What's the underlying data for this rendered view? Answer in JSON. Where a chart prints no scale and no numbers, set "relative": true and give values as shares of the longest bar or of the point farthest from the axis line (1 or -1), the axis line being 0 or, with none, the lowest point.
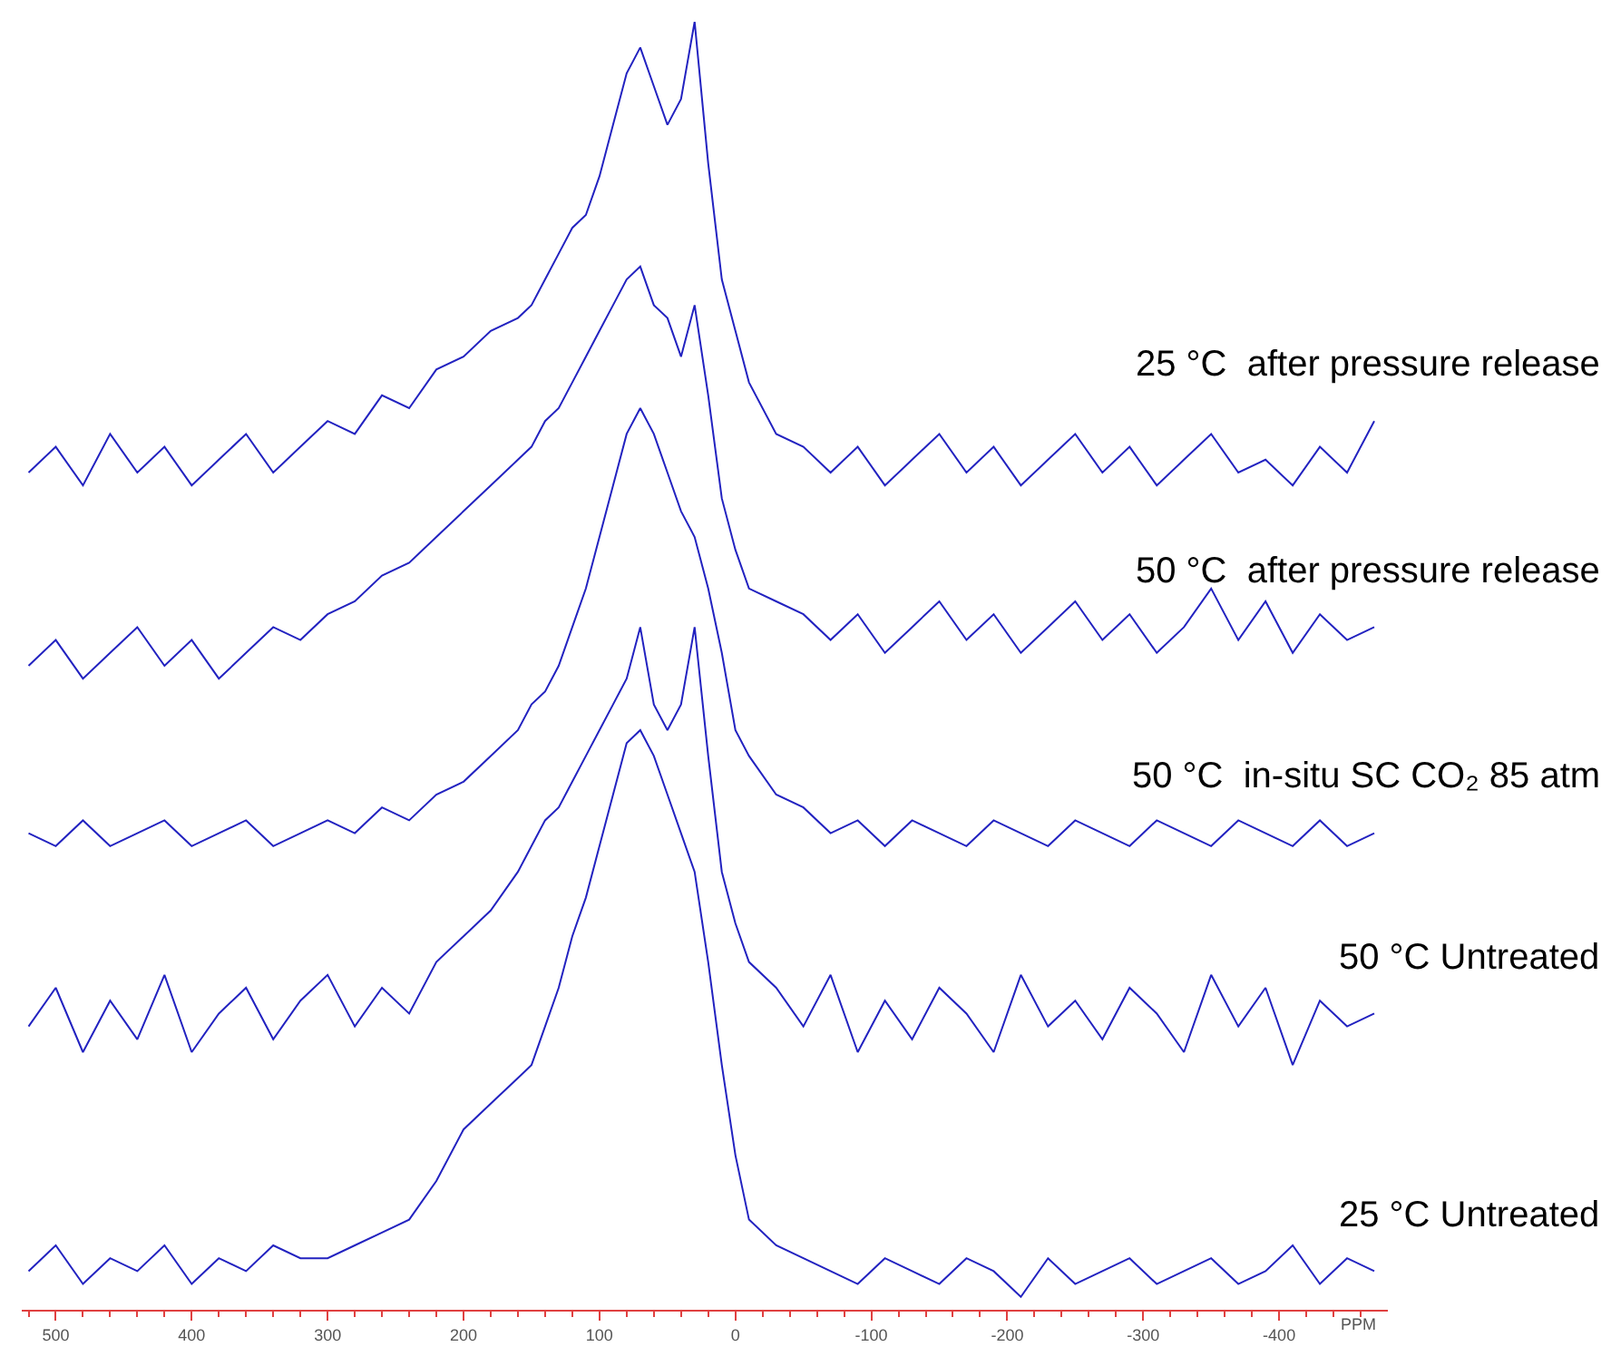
{
  "chart_data": {
    "type": "line",
    "relative": true,
    "xlabel": "PPM",
    "legend": false,
    "tick_labels": "x",
    "marker": "none",
    "line_style": "solid",
    "xlim": [
      525,
      -480
    ],
    "xticks": [
      500,
      400,
      300,
      200,
      100,
      0,
      -100,
      -200,
      -300,
      -400,
      {
        "value": 520,
        "label": null
      },
      {
        "value": 480,
        "label": null
      },
      {
        "value": 460,
        "label": null
      },
      {
        "value": 440,
        "label": null
      },
      {
        "value": 420,
        "label": null
      },
      {
        "value": 380,
        "label": null
      },
      {
        "value": 360,
        "label": null
      },
      {
        "value": 340,
        "label": null
      },
      {
        "value": 320,
        "label": null
      },
      {
        "value": 280,
        "label": null
      },
      {
        "value": 260,
        "label": null
      },
      {
        "value": 240,
        "label": null
      },
      {
        "value": 220,
        "label": null
      },
      {
        "value": 180,
        "label": null
      },
      {
        "value": 160,
        "label": null
      },
      {
        "value": 140,
        "label": null
      },
      {
        "value": 120,
        "label": null
      },
      {
        "value": 80,
        "label": null
      },
      {
        "value": 60,
        "label": null
      },
      {
        "value": 40,
        "label": null
      },
      {
        "value": 20,
        "label": null
      },
      {
        "value": -20,
        "label": null
      },
      {
        "value": -40,
        "label": null
      },
      {
        "value": -60,
        "label": null
      },
      {
        "value": -80,
        "label": null
      },
      {
        "value": -120,
        "label": null
      },
      {
        "value": -140,
        "label": null
      },
      {
        "value": -160,
        "label": null
      },
      {
        "value": -180,
        "label": null
      },
      {
        "value": -220,
        "label": null
      },
      {
        "value": -240,
        "label": null
      },
      {
        "value": -260,
        "label": null
      },
      {
        "value": -280,
        "label": null
      },
      {
        "value": -320,
        "label": null
      },
      {
        "value": -340,
        "label": null
      },
      {
        "value": -360,
        "label": null
      },
      {
        "value": -380,
        "label": null
      },
      {
        "value": -420,
        "label": null
      },
      {
        "value": -440,
        "label": null
      },
      {
        "value": -460,
        "label": null
      }
    ],
    "x": [
      520,
      500,
      480,
      460,
      440,
      420,
      400,
      380,
      360,
      340,
      320,
      300,
      280,
      260,
      240,
      220,
      200,
      180,
      160,
      150,
      140,
      130,
      120,
      110,
      100,
      90,
      80,
      70,
      60,
      50,
      40,
      30,
      20,
      10,
      0,
      -10,
      -30,
      -50,
      -70,
      -90,
      -110,
      -130,
      -150,
      -170,
      -190,
      -210,
      -230,
      -250,
      -270,
      -290,
      -310,
      -330,
      -350,
      -370,
      -390,
      -410,
      -430,
      -450,
      -470
    ],
    "series": [
      {
        "name": "25 °C  after pressure release",
        "color": "#2222c0",
        "values": [
          0.65,
          0.67,
          0.64,
          0.68,
          0.65,
          0.67,
          0.64,
          0.66,
          0.68,
          0.65,
          0.67,
          0.69,
          0.68,
          0.71,
          0.7,
          0.73,
          0.74,
          0.76,
          0.77,
          0.78,
          0.8,
          0.82,
          0.84,
          0.85,
          0.88,
          0.92,
          0.96,
          0.98,
          0.95,
          0.92,
          0.94,
          1.0,
          0.89,
          0.8,
          0.76,
          0.72,
          0.68,
          0.67,
          0.65,
          0.67,
          0.64,
          0.66,
          0.68,
          0.65,
          0.67,
          0.64,
          0.66,
          0.68,
          0.65,
          0.67,
          0.64,
          0.66,
          0.68,
          0.65,
          0.66,
          0.64,
          0.67,
          0.65,
          0.69
        ]
      },
      {
        "name": "50 °C  after pressure release",
        "color": "#2222c0",
        "values": [
          0.5,
          0.52,
          0.49,
          0.51,
          0.53,
          0.5,
          0.52,
          0.49,
          0.51,
          0.53,
          0.52,
          0.54,
          0.55,
          0.57,
          0.58,
          0.6,
          0.62,
          0.64,
          0.66,
          0.67,
          0.69,
          0.7,
          0.72,
          0.74,
          0.76,
          0.78,
          0.8,
          0.81,
          0.78,
          0.77,
          0.74,
          0.78,
          0.71,
          0.63,
          0.59,
          0.56,
          0.55,
          0.54,
          0.52,
          0.54,
          0.51,
          0.53,
          0.55,
          0.52,
          0.54,
          0.51,
          0.53,
          0.55,
          0.52,
          0.54,
          0.51,
          0.53,
          0.56,
          0.52,
          0.55,
          0.51,
          0.54,
          0.52,
          0.53
        ]
      },
      {
        "name": "50 °C  in-situ SC CO₂ 85 atm",
        "color": "#2222c0",
        "values": [
          0.37,
          0.36,
          0.38,
          0.36,
          0.37,
          0.38,
          0.36,
          0.37,
          0.38,
          0.36,
          0.37,
          0.38,
          0.37,
          0.39,
          0.38,
          0.4,
          0.41,
          0.43,
          0.45,
          0.47,
          0.48,
          0.5,
          0.53,
          0.56,
          0.6,
          0.64,
          0.68,
          0.7,
          0.68,
          0.65,
          0.62,
          0.6,
          0.56,
          0.51,
          0.45,
          0.43,
          0.4,
          0.39,
          0.37,
          0.38,
          0.36,
          0.38,
          0.37,
          0.36,
          0.38,
          0.37,
          0.36,
          0.38,
          0.37,
          0.36,
          0.38,
          0.37,
          0.36,
          0.38,
          0.37,
          0.36,
          0.38,
          0.36,
          0.37
        ]
      },
      {
        "name": "50 °C Untreated",
        "color": "#2222c0",
        "values": [
          0.22,
          0.25,
          0.2,
          0.24,
          0.21,
          0.26,
          0.2,
          0.23,
          0.25,
          0.21,
          0.24,
          0.26,
          0.22,
          0.25,
          0.23,
          0.27,
          0.29,
          0.31,
          0.34,
          0.36,
          0.38,
          0.39,
          0.41,
          0.43,
          0.45,
          0.47,
          0.49,
          0.53,
          0.47,
          0.45,
          0.47,
          0.53,
          0.43,
          0.34,
          0.3,
          0.27,
          0.25,
          0.22,
          0.26,
          0.2,
          0.24,
          0.21,
          0.25,
          0.23,
          0.2,
          0.26,
          0.22,
          0.24,
          0.21,
          0.25,
          0.23,
          0.2,
          0.26,
          0.22,
          0.25,
          0.19,
          0.24,
          0.22,
          0.23
        ]
      },
      {
        "name": "25 °C Untreated",
        "color": "#2222c0",
        "values": [
          0.03,
          0.05,
          0.02,
          0.04,
          0.03,
          0.05,
          0.02,
          0.04,
          0.03,
          0.05,
          0.04,
          0.04,
          0.05,
          0.06,
          0.07,
          0.1,
          0.14,
          0.16,
          0.18,
          0.19,
          0.22,
          0.25,
          0.29,
          0.32,
          0.36,
          0.4,
          0.44,
          0.45,
          0.43,
          0.4,
          0.37,
          0.34,
          0.27,
          0.19,
          0.12,
          0.07,
          0.05,
          0.04,
          0.03,
          0.02,
          0.04,
          0.03,
          0.02,
          0.04,
          0.03,
          0.01,
          0.04,
          0.02,
          0.03,
          0.04,
          0.02,
          0.03,
          0.04,
          0.02,
          0.03,
          0.05,
          0.02,
          0.04,
          0.03
        ]
      }
    ]
  }
}
